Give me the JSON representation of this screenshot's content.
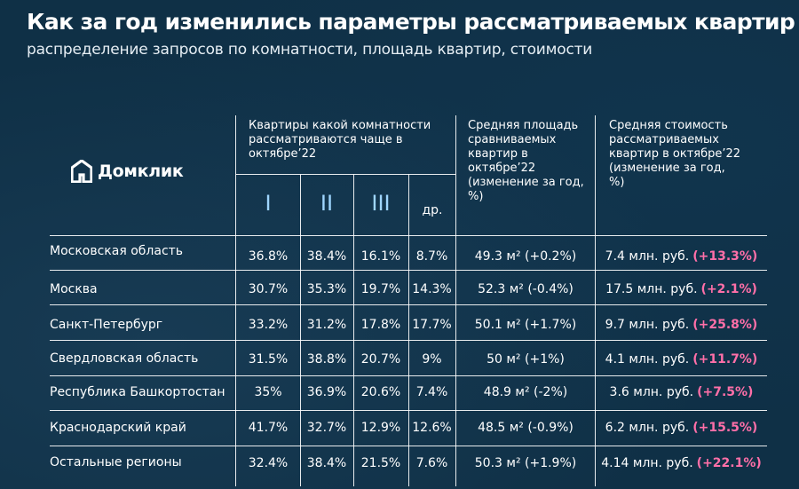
{
  "title": "Как за год изменились параметры рассматриваемых квартир",
  "subtitle": "распределение запросов по комнатности, площадь квартир, стоимости",
  "logo": {
    "text": "Домклик"
  },
  "headers": {
    "rooms": "Квартиры какой комнатности рассматриваются чаще в октябре’22",
    "area": "Средняя площадь сравниваемых квартир в октябре’22 (изменение за год, %)",
    "price": "Средняя стоимость рассматриваемых квартир в октябре’22 (изменение за год, %)"
  },
  "room_columns": [
    "I",
    "II",
    "III",
    "др."
  ],
  "colors": {
    "background": "#0f3046",
    "roman": "#9fd6ff",
    "accent": "#ff6fa8"
  },
  "rows": [
    {
      "region": "Московская область",
      "r1": "36.8%",
      "r2": "38.4%",
      "r3": "16.1%",
      "other": "8.7%",
      "area": "49.3 м² (+0.2%)",
      "price": "7.4 млн. руб.",
      "price_change": "(+13.3%)"
    },
    {
      "region": "Москва",
      "r1": "30.7%",
      "r2": "35.3%",
      "r3": "19.7%",
      "other": "14.3%",
      "area": "52.3 м² (-0.4%)",
      "price": "17.5 млн. руб.",
      "price_change": "(+2.1%)"
    },
    {
      "region": "Санкт-Петербург",
      "r1": "33.2%",
      "r2": "31.2%",
      "r3": "17.8%",
      "other": "17.7%",
      "area": "50.1 м² (+1.7%)",
      "price": "9.7 млн. руб.",
      "price_change": "(+25.8%)"
    },
    {
      "region": "Свердловская область",
      "r1": "31.5%",
      "r2": "38.8%",
      "r3": "20.7%",
      "other": "9%",
      "area": "50 м² (+1%)",
      "price": "4.1 млн. руб.",
      "price_change": "(+11.7%)"
    },
    {
      "region": "Республика Башкортостан",
      "r1": "35%",
      "r2": "36.9%",
      "r3": "20.6%",
      "other": "7.4%",
      "area": "48.9 м² (-2%)",
      "price": "3.6 млн. руб.",
      "price_change": "(+7.5%)"
    },
    {
      "region": "Краснодарский край",
      "r1": "41.7%",
      "r2": "32.7%",
      "r3": "12.9%",
      "other": "12.6%",
      "area": "48.5 м² (-0.9%)",
      "price": "6.2 млн. руб.",
      "price_change": "(+15.5%)"
    },
    {
      "region": "Остальные регионы",
      "r1": "32.4%",
      "r2": "38.4%",
      "r3": "21.5%",
      "other": "7.6%",
      "area": "50.3 м² (+1.9%)",
      "price": "4.14 млн. руб.",
      "price_change": "(+22.1%)"
    }
  ]
}
